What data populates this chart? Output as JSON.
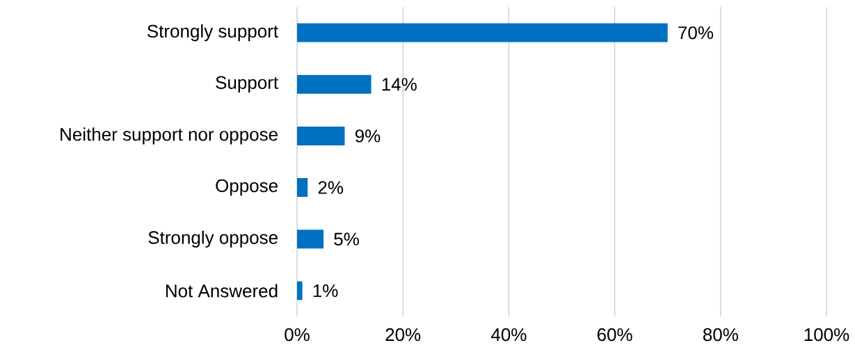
{
  "chart_data": {
    "type": "bar",
    "orientation": "horizontal",
    "categories": [
      "Strongly support",
      "Support",
      "Neither support nor oppose",
      "Oppose",
      "Strongly oppose",
      "Not Answered"
    ],
    "values": [
      70,
      14,
      9,
      2,
      5,
      1
    ],
    "value_labels": [
      "70%",
      "14%",
      "9%",
      "2%",
      "5%",
      "1%"
    ],
    "color": "#0070c0",
    "xlim": [
      0,
      100
    ],
    "xticks": [
      {
        "value": 0,
        "label": "0%"
      },
      {
        "value": 20,
        "label": "20%"
      },
      {
        "value": 40,
        "label": "40%"
      },
      {
        "value": 60,
        "label": "60%"
      },
      {
        "value": 80,
        "label": "80%"
      },
      {
        "value": 100,
        "label": "100%"
      }
    ],
    "grid": "x"
  }
}
